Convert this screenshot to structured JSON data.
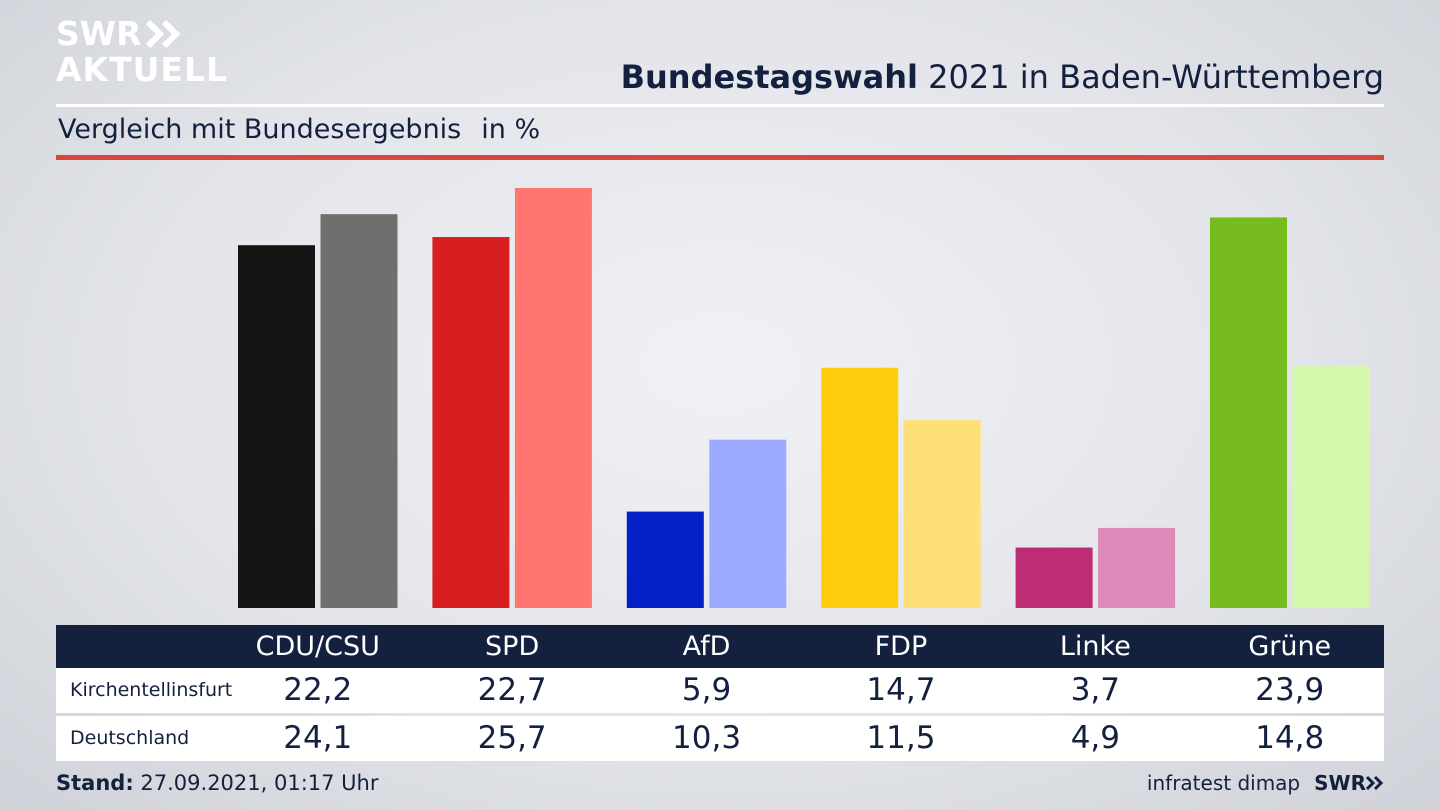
{
  "header": {
    "logo_line1": "SWR",
    "logo_line2": "AKTUELL",
    "title_bold": "Bundestagswahl",
    "title_rest": " 2021 in Baden-Württemberg",
    "subtitle": "Vergleich mit Bundesergebnis",
    "unit": "in %"
  },
  "colors": {
    "navy": "#13213f",
    "red_rule": "#d9473a"
  },
  "chart_data": {
    "type": "bar",
    "title": "Bundestagswahl 2021 in Baden-Württemberg",
    "subtitle": "Vergleich mit Bundesergebnis",
    "ylabel": "in %",
    "categories": [
      "CDU/CSU",
      "SPD",
      "AfD",
      "FDP",
      "Linke",
      "Grüne"
    ],
    "series": [
      {
        "name": "Kirchentellinsfurt",
        "values": [
          22.2,
          22.7,
          5.9,
          14.7,
          3.7,
          23.9
        ],
        "labels": [
          "22,2",
          "22,7",
          "5,9",
          "14,7",
          "3,7",
          "23,9"
        ],
        "colors": [
          "#141414",
          "#d81f1f",
          "#0320c7",
          "#ffcc0b",
          "#bd2d73",
          "#76bc1e"
        ]
      },
      {
        "name": "Deutschland",
        "values": [
          24.1,
          25.7,
          10.3,
          11.5,
          4.9,
          14.8
        ],
        "labels": [
          "24,1",
          "25,7",
          "10,3",
          "11,5",
          "4,9",
          "14,8"
        ],
        "colors": [
          "#716f6d",
          "#ff7570",
          "#9dabff",
          "#fde077",
          "#de8ab8",
          "#d5f8ac"
        ]
      }
    ],
    "ylim": [
      0,
      25.7
    ],
    "grid": false,
    "legend": "table-below"
  },
  "footer": {
    "stand_label": "Stand:",
    "stand_value": " 27.09.2021, 01:17 Uhr",
    "source": "infratest dimap",
    "logo": "SWR"
  }
}
